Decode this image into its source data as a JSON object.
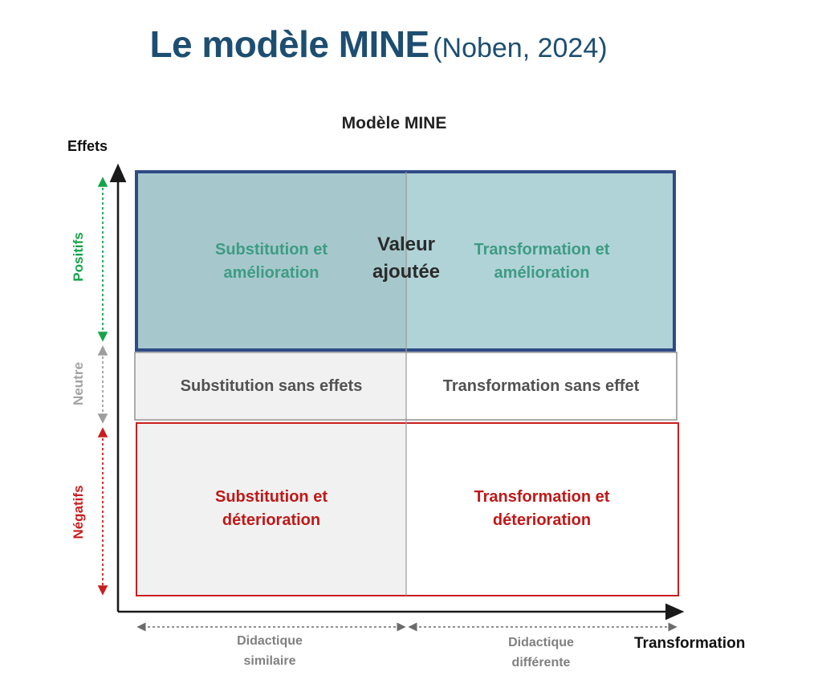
{
  "title": {
    "main": "Le modèle MINE",
    "sub": "(Noben, 2024)"
  },
  "diagram": {
    "title": "Modèle MINE",
    "y_axis_label": "Effets",
    "x_axis_label": "Transformation",
    "bands": {
      "positive": "Positifs",
      "neutral": "Neutre",
      "negative": "Négatifs"
    },
    "center_label": "Valeur ajoutée",
    "cells": {
      "positive_left": "Substitution et amélioration",
      "positive_right": "Transformation et amélioration",
      "neutral_left": "Substitution sans effets",
      "neutral_right": "Transformation sans effet",
      "negative_left": "Substitution et déterioration",
      "negative_right": "Transformation et déterioration"
    },
    "bottom": {
      "left": "Didactique similaire",
      "right": "Didactique différente"
    },
    "colors": {
      "title": "#1d4e72",
      "positive_text": "#3d9c82",
      "positive_fill_left": "#a6c8cc",
      "positive_fill_right": "#b0d3d8",
      "positive_border": "#2f4b86",
      "neutral_text": "#525252",
      "neutral_fill_left": "#f1f1f1",
      "negative_text": "#c01818",
      "negative_border": "#c81e1e",
      "negative_fill_left": "#f1f1f1",
      "band_positive": "#16a34a",
      "band_neutral": "#a3a3a3",
      "band_negative": "#c81e1e"
    }
  }
}
